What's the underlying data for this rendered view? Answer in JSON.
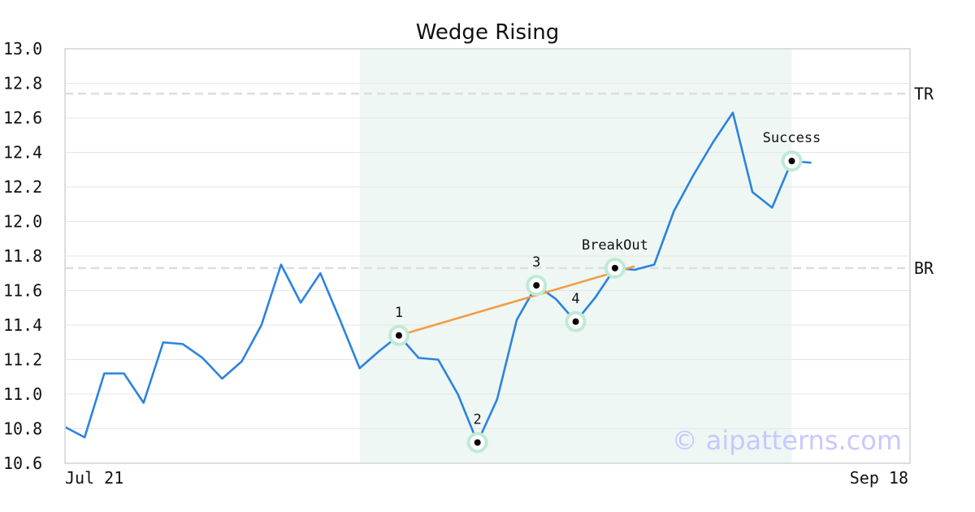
{
  "chart_data": {
    "type": "line",
    "title": "Wedge Rising",
    "xlabel": "",
    "ylabel": "",
    "x_tick_labels": [
      "Jul 21",
      "Sep 18"
    ],
    "ylim": [
      10.6,
      13.0
    ],
    "yticks": [
      10.6,
      10.8,
      11.0,
      11.2,
      11.4,
      11.6,
      11.8,
      12.0,
      12.2,
      12.4,
      12.6,
      12.8,
      13.0
    ],
    "grid": "horizontal",
    "line_color": "#2b83e0",
    "series": [
      {
        "values": [
          10.81,
          10.75,
          11.12,
          11.12,
          10.95,
          11.3,
          11.29,
          11.21,
          11.09,
          11.19,
          11.4,
          11.75,
          11.53,
          11.7,
          11.43,
          11.15,
          11.25,
          11.34,
          11.21,
          11.2,
          11.0,
          10.72,
          10.97,
          11.43,
          11.63,
          11.55,
          11.42,
          11.56,
          11.73,
          11.72,
          11.75,
          12.06,
          12.27,
          12.46,
          12.63,
          12.17,
          12.08,
          12.35,
          12.34
        ]
      }
    ],
    "highlight_region": {
      "x_start_index": 15,
      "x_end_index": 37,
      "color": "#eef7f3"
    },
    "levels": [
      {
        "label": "TR",
        "value": 12.74
      },
      {
        "label": "BR",
        "value": 11.73
      }
    ],
    "trendline": {
      "from_index": 17,
      "from_value": 11.34,
      "to_index": 29,
      "to_value": 11.74,
      "color": "#f29d45"
    },
    "markers": [
      {
        "label": "1",
        "index": 17,
        "value": 11.34,
        "label_pos": "above"
      },
      {
        "label": "2",
        "index": 21,
        "value": 10.72,
        "label_pos": "above"
      },
      {
        "label": "3",
        "index": 24,
        "value": 11.63,
        "label_pos": "above"
      },
      {
        "label": "4",
        "index": 26,
        "value": 11.42,
        "label_pos": "above"
      },
      {
        "label": "BreakOut",
        "index": 28,
        "value": 11.73,
        "label_pos": "above"
      },
      {
        "label": "Success",
        "index": 37,
        "value": 12.35,
        "label_pos": "above"
      }
    ],
    "watermark": "© aipatterns.com"
  }
}
